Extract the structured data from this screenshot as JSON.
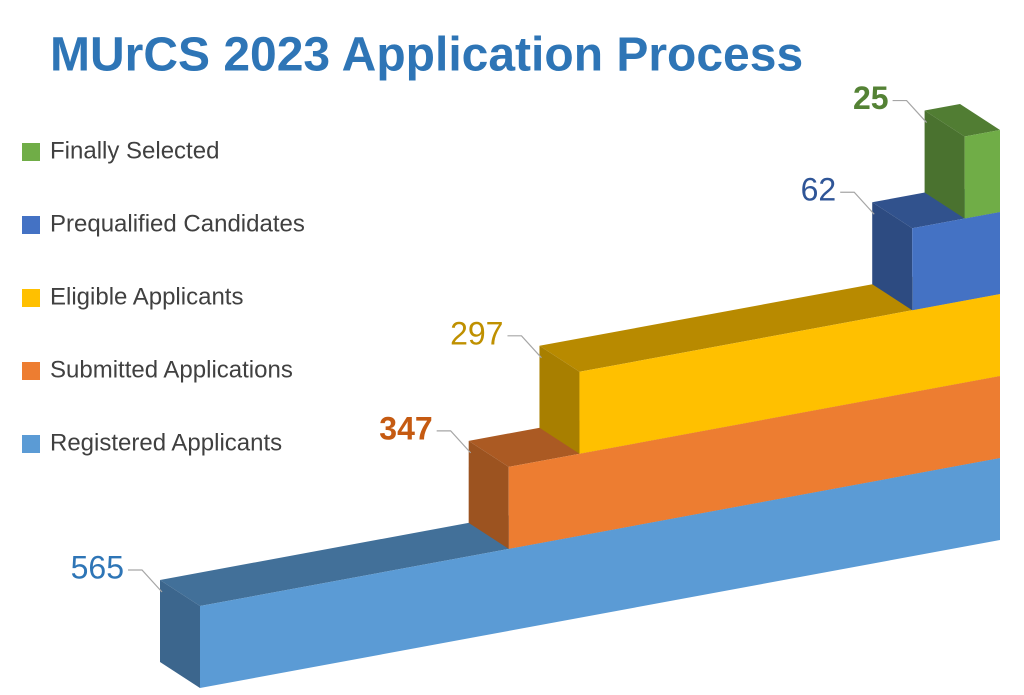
{
  "chart_data": {
    "type": "bar3d",
    "title": "MUrCS 2023 Application Process",
    "series": [
      {
        "name": "Registered Applicants",
        "color": "#5b9bd5",
        "values": [
          565
        ],
        "label_color": "#2e75b6",
        "label_bold": false
      },
      {
        "name": "Submitted Applications",
        "color": "#ed7d31",
        "values": [
          347
        ],
        "label_color": "#c55a11",
        "label_bold": true
      },
      {
        "name": "Eligible Applicants",
        "color": "#ffc000",
        "values": [
          297
        ],
        "label_color": "#bf9000",
        "label_bold": false
      },
      {
        "name": "Prequalified Candidates",
        "color": "#4472c4",
        "values": [
          62
        ],
        "label_color": "#2f5597",
        "label_bold": false
      },
      {
        "name": "Finally Selected",
        "color": "#70ad47",
        "values": [
          25
        ],
        "label_color": "#548235",
        "label_bold": true
      }
    ],
    "legend": "left"
  }
}
